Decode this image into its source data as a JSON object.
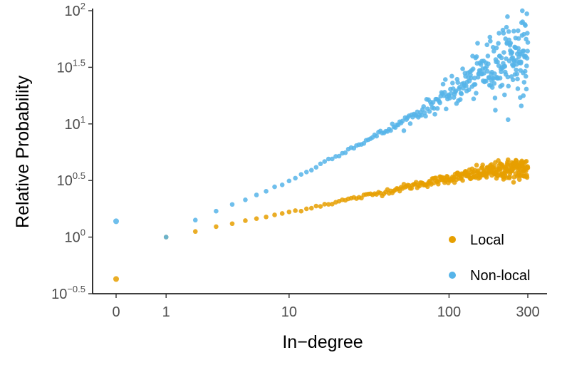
{
  "chart_data": {
    "type": "scatter",
    "title": "",
    "xlabel": "In−degree",
    "ylabel": "Relative Probability",
    "x_scale": "log(x+1)",
    "y_scale": "log10",
    "xlim": [
      0,
      300
    ],
    "ylim_log10": [
      -0.5,
      2
    ],
    "grid": false,
    "legend_position": "bottom-right",
    "x_ticks": [
      {
        "value": 0,
        "label": "0"
      },
      {
        "value": 1,
        "label": "1"
      },
      {
        "value": 10,
        "label": "10"
      },
      {
        "value": 100,
        "label": "100"
      },
      {
        "value": 300,
        "label": "300"
      }
    ],
    "y_ticks": [
      {
        "exponent": 2,
        "base": "10",
        "sup": "2"
      },
      {
        "exponent": 1.5,
        "base": "10",
        "sup": "1.5"
      },
      {
        "exponent": 1,
        "base": "10",
        "sup": "1"
      },
      {
        "exponent": 0.5,
        "base": "10",
        "sup": "0.5"
      },
      {
        "exponent": 0,
        "base": "10",
        "sup": "0"
      },
      {
        "exponent": -0.5,
        "base": "10",
        "sup": "−0.5"
      }
    ],
    "series": [
      {
        "name": "Local",
        "color": "#E69F00",
        "trend_log10": [
          [
            0,
            -0.37
          ],
          [
            1,
            0.0
          ],
          [
            2,
            0.05
          ],
          [
            3,
            0.09
          ],
          [
            4,
            0.12
          ],
          [
            5,
            0.14
          ],
          [
            7,
            0.18
          ],
          [
            10,
            0.22
          ],
          [
            20,
            0.31
          ],
          [
            30,
            0.36
          ],
          [
            50,
            0.43
          ],
          [
            100,
            0.52
          ],
          [
            150,
            0.56
          ],
          [
            200,
            0.59
          ],
          [
            250,
            0.6
          ],
          [
            300,
            0.6
          ]
        ],
        "spread_log10": [
          [
            1,
            0.0
          ],
          [
            30,
            0.01
          ],
          [
            100,
            0.02
          ],
          [
            200,
            0.04
          ],
          [
            300,
            0.06
          ]
        ]
      },
      {
        "name": "Non-local",
        "color": "#56B4E9",
        "trend_log10": [
          [
            0,
            0.14
          ],
          [
            1,
            0.0
          ],
          [
            2,
            0.15
          ],
          [
            3,
            0.23
          ],
          [
            4,
            0.29
          ],
          [
            5,
            0.33
          ],
          [
            7,
            0.41
          ],
          [
            10,
            0.49
          ],
          [
            20,
            0.72
          ],
          [
            30,
            0.84
          ],
          [
            50,
            1.0
          ],
          [
            100,
            1.26
          ],
          [
            150,
            1.44
          ],
          [
            200,
            1.55
          ],
          [
            250,
            1.6
          ],
          [
            300,
            1.63
          ]
        ],
        "spread_log10": [
          [
            1,
            0.0
          ],
          [
            30,
            0.01
          ],
          [
            70,
            0.03
          ],
          [
            100,
            0.06
          ],
          [
            150,
            0.1
          ],
          [
            200,
            0.15
          ],
          [
            300,
            0.18
          ]
        ]
      }
    ]
  }
}
